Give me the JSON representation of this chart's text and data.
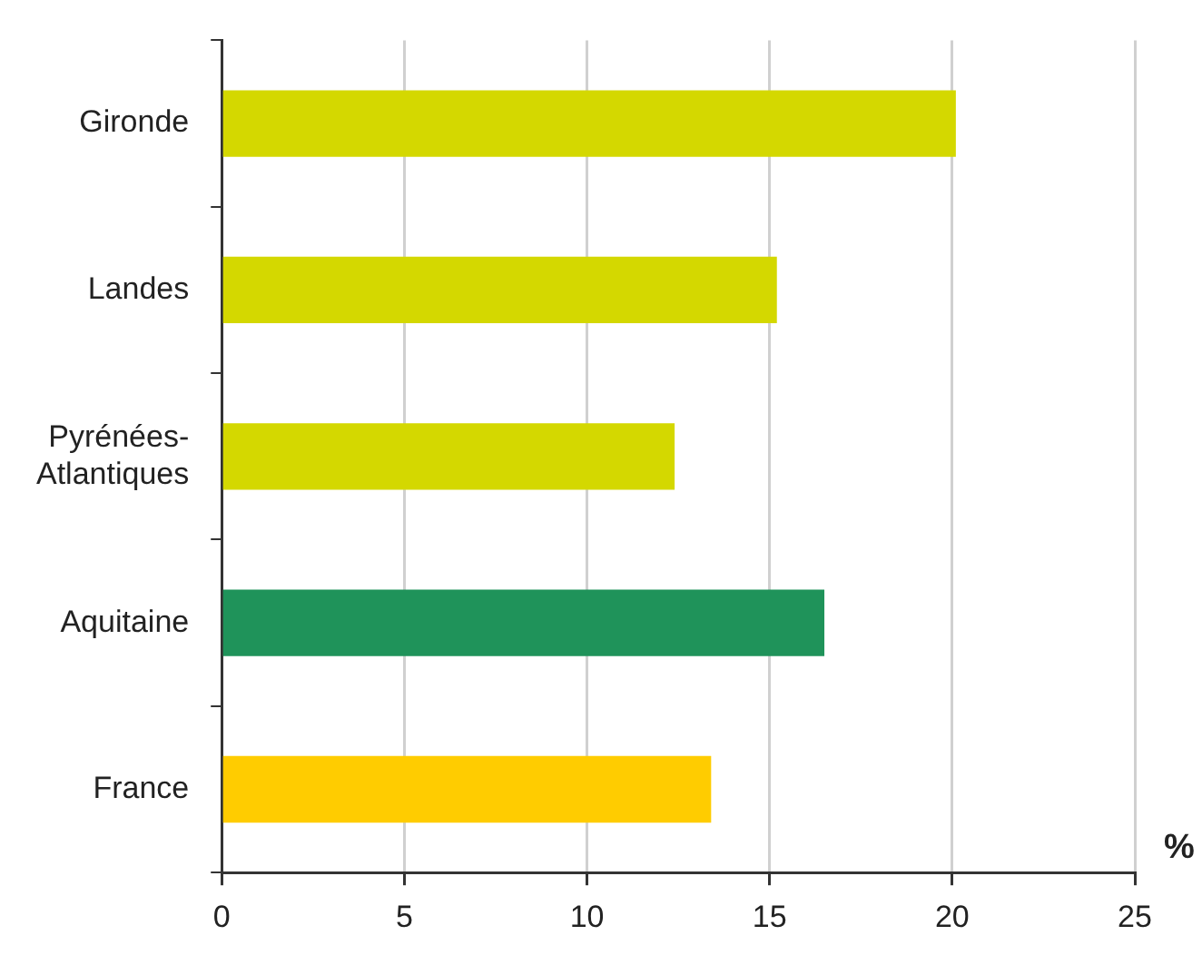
{
  "chart_data": {
    "type": "bar",
    "orientation": "horizontal",
    "xlabel": "%",
    "categories": [
      "Gironde",
      "Landes",
      "Pyrénées-Atlantiques",
      "Aquitaine",
      "France"
    ],
    "values": [
      20.1,
      15.2,
      12.4,
      16.5,
      13.4
    ],
    "colors": [
      "#d4d800",
      "#d4d800",
      "#d4d800",
      "#1f935a",
      "#ffcc00"
    ],
    "xlim": [
      0,
      25
    ],
    "xticks": [
      0,
      5,
      10,
      15,
      20,
      25
    ],
    "grid": "x"
  }
}
